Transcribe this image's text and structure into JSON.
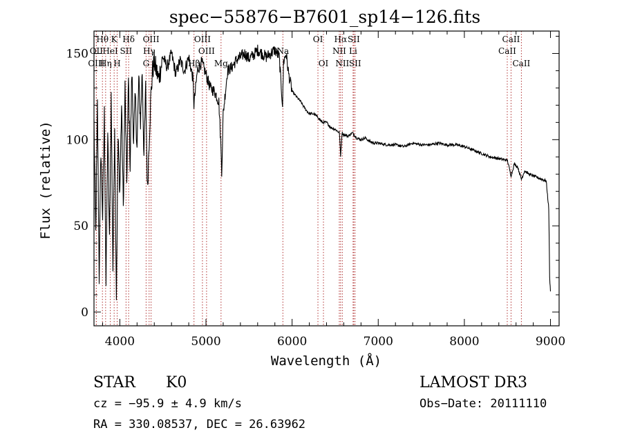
{
  "chart_data": {
    "type": "line",
    "title": "spec−55876−B7601_sp14−126.fits",
    "xlabel": "Wavelength (Å)",
    "ylabel": "Flux (relative)",
    "xlim": [
      3700,
      9100
    ],
    "ylim": [
      -8,
      163
    ],
    "xticks": [
      4000,
      5000,
      6000,
      7000,
      8000,
      9000
    ],
    "xtick_labels": [
      "4000",
      "5000",
      "6000",
      "7000",
      "8000",
      "9000"
    ],
    "yticks": [
      0,
      50,
      100,
      150
    ],
    "ytick_labels": [
      "0",
      "50",
      "100",
      "150"
    ],
    "series": [
      {
        "name": "flux",
        "x": [
          3700,
          3720,
          3740,
          3760,
          3780,
          3800,
          3820,
          3840,
          3860,
          3880,
          3900,
          3920,
          3940,
          3960,
          3980,
          4000,
          4020,
          4040,
          4060,
          4080,
          4100,
          4120,
          4140,
          4160,
          4180,
          4200,
          4220,
          4240,
          4260,
          4280,
          4300,
          4320,
          4340,
          4360,
          4380,
          4400,
          4450,
          4500,
          4550,
          4600,
          4650,
          4700,
          4750,
          4800,
          4850,
          4860,
          4900,
          4950,
          5000,
          5050,
          5100,
          5150,
          5170,
          5183,
          5200,
          5250,
          5300,
          5350,
          5400,
          5450,
          5500,
          5550,
          5600,
          5650,
          5700,
          5750,
          5800,
          5850,
          5890,
          5900,
          5930,
          5960,
          6000,
          6050,
          6100,
          6150,
          6200,
          6250,
          6300,
          6350,
          6400,
          6450,
          6500,
          6550,
          6563,
          6580,
          6600,
          6650,
          6700,
          6750,
          6800,
          6850,
          6900,
          6950,
          7000,
          7100,
          7200,
          7300,
          7400,
          7500,
          7600,
          7700,
          7800,
          7900,
          8000,
          8100,
          8200,
          8300,
          8400,
          8500,
          8542,
          8580,
          8620,
          8662,
          8700,
          8750,
          8800,
          8850,
          8900,
          8950,
          8980,
          8990,
          9000
        ],
        "values": [
          110,
          45,
          120,
          20,
          95,
          55,
          115,
          15,
          105,
          40,
          125,
          25,
          110,
          10,
          100,
          70,
          120,
          60,
          130,
          75,
          135,
          85,
          140,
          100,
          125,
          95,
          135,
          110,
          140,
          90,
          130,
          70,
          100,
          125,
          140,
          145,
          135,
          148,
          142,
          150,
          138,
          146,
          140,
          148,
          135,
          120,
          140,
          145,
          138,
          130,
          128,
          122,
          100,
          82,
          115,
          140,
          142,
          146,
          148,
          150,
          147,
          149,
          152,
          150,
          148,
          150,
          152,
          148,
          120,
          145,
          150,
          138,
          128,
          125,
          122,
          118,
          115,
          115,
          113,
          110,
          110,
          107,
          106,
          104,
          90,
          104,
          103,
          102,
          104,
          101,
          100,
          101,
          99,
          98,
          98,
          97,
          97,
          96,
          98,
          97,
          97,
          98,
          97,
          97,
          96,
          94,
          92,
          90,
          89,
          88,
          79,
          86,
          84,
          77,
          82,
          80,
          79,
          78,
          77,
          76,
          60,
          20,
          12
        ]
      }
    ],
    "lines": [
      {
        "label": "Hθ",
        "x": 3798,
        "row": 0
      },
      {
        "label": "K",
        "x": 3934,
        "row": 0
      },
      {
        "label": "Hδ",
        "x": 4102,
        "row": 0
      },
      {
        "label": "OIII",
        "x": 4363,
        "row": 0
      },
      {
        "label": "OIII",
        "x": 4959,
        "row": 0
      },
      {
        "label": "OI",
        "x": 6300,
        "row": 0
      },
      {
        "label": "Hα",
        "x": 6563,
        "row": 0
      },
      {
        "label": "SII",
        "x": 6716,
        "row": 0
      },
      {
        "label": "CaII",
        "x": 8542,
        "row": 0
      },
      {
        "label": "OII",
        "x": 3727,
        "row": 1
      },
      {
        "label": "HeI",
        "x": 3889,
        "row": 1
      },
      {
        "label": "SII",
        "x": 4072,
        "row": 1
      },
      {
        "label": "Hγ",
        "x": 4340,
        "row": 1
      },
      {
        "label": "OIII",
        "x": 5007,
        "row": 1
      },
      {
        "label": "Na",
        "x": 5893,
        "row": 1
      },
      {
        "label": "NII",
        "x": 6548,
        "row": 1
      },
      {
        "label": "Li",
        "x": 6708,
        "row": 1
      },
      {
        "label": "CaII",
        "x": 8498,
        "row": 1
      },
      {
        "label": "OIII",
        "x": 3727,
        "row": 2
      },
      {
        "label": "Hη",
        "x": 3835,
        "row": 2
      },
      {
        "label": "H",
        "x": 3969,
        "row": 2
      },
      {
        "label": "G",
        "x": 4305,
        "row": 2
      },
      {
        "label": "Hβ",
        "x": 4861,
        "row": 2
      },
      {
        "label": "Mg",
        "x": 5175,
        "row": 2
      },
      {
        "label": "OI",
        "x": 6364,
        "row": 2
      },
      {
        "label": "NII",
        "x": 6583,
        "row": 2
      },
      {
        "label": "SII",
        "x": 6731,
        "row": 2
      },
      {
        "label": "CaII",
        "x": 8662,
        "row": 2
      }
    ]
  },
  "info": {
    "class": "STAR",
    "subclass": "K0",
    "survey": "LAMOST DR3",
    "cz": "cz = −95.9 ± 4.9 km/s",
    "obs_date": "Obs−Date: 20111110",
    "radec": "RA = 330.08537, DEC =  26.63962"
  }
}
